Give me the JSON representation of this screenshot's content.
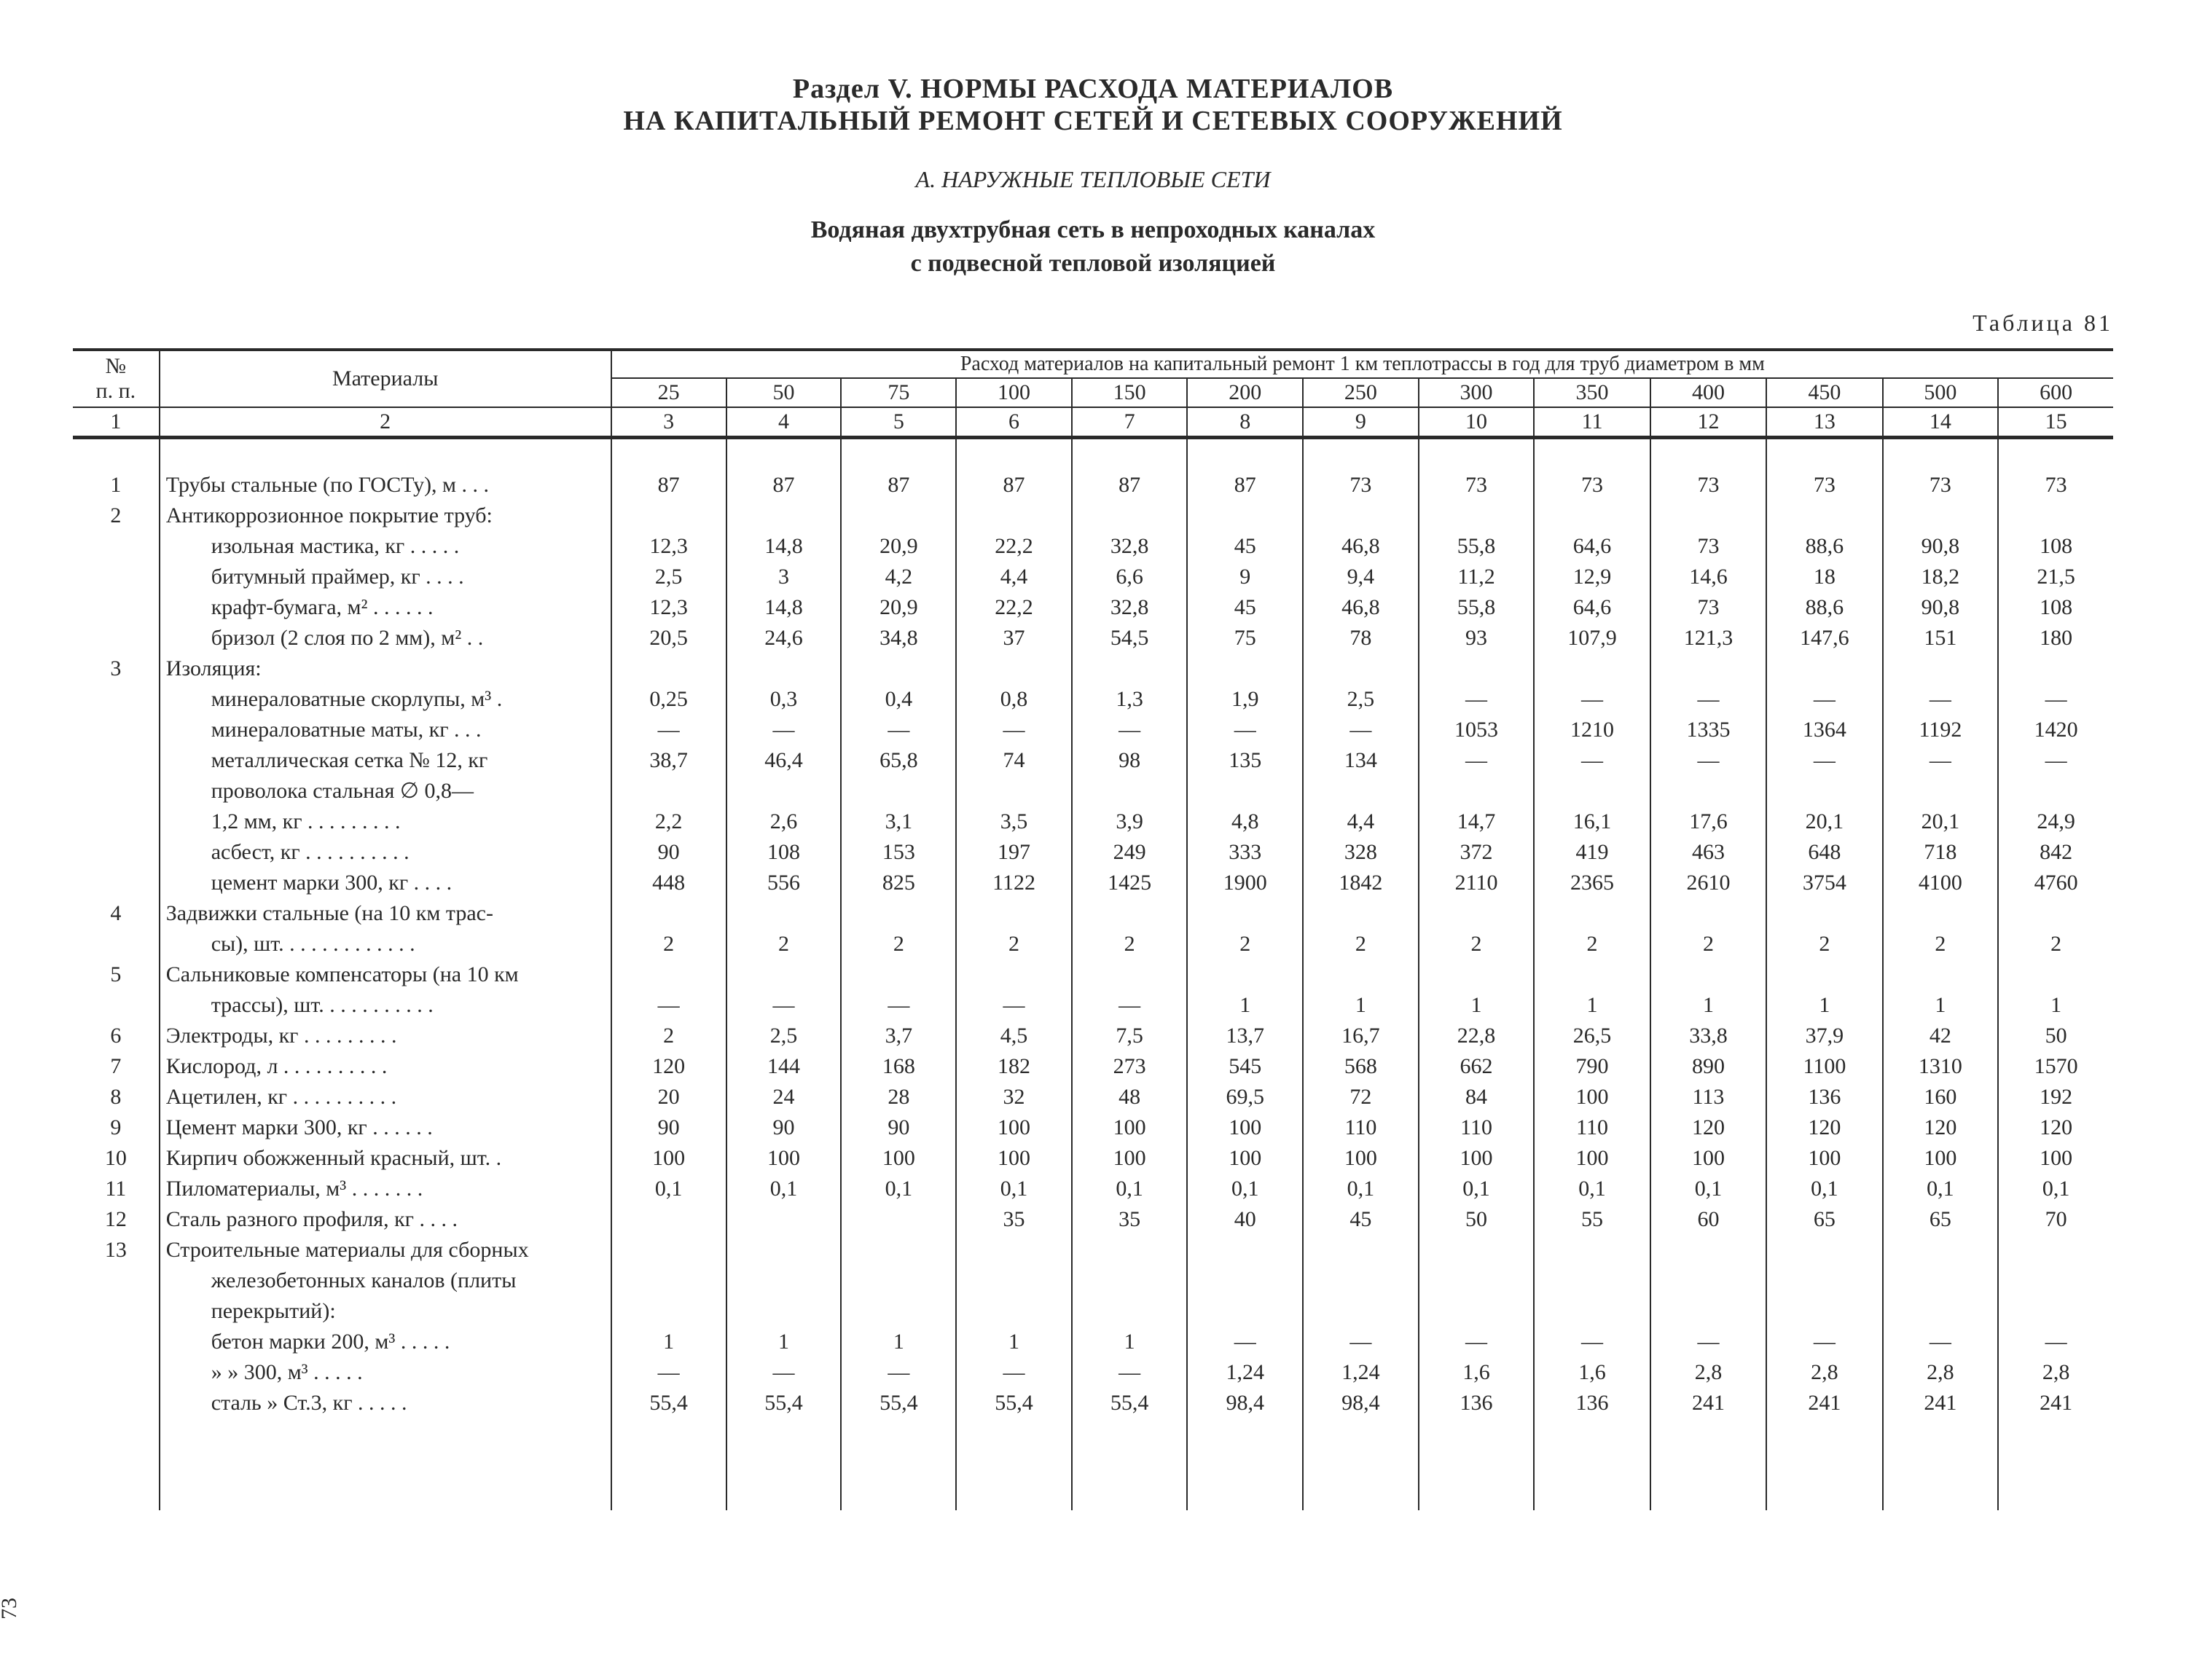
{
  "heading": {
    "line1": "Раздел V. НОРМЫ РАСХОДА МАТЕРИАЛОВ",
    "line2": "НА КАПИТАЛЬНЫЙ РЕМОНТ СЕТЕЙ И СЕТЕВЫХ СООРУЖЕНИЙ",
    "subsection": "А. НАРУЖНЫЕ ТЕПЛОВЫЕ СЕТИ",
    "subtitle1": "Водяная двухтрубная сеть в непроходных каналах",
    "subtitle2": "с подвесной тепловой изоляцией",
    "table_label": "Таблица 81"
  },
  "table": {
    "header": {
      "col_num": "№\nп. п.",
      "col_mat": "Материалы",
      "caption": "Расход материалов на капитальный ремонт 1 км теплотрассы в год для труб диаметром в мм",
      "diameters": [
        "25",
        "50",
        "75",
        "100",
        "150",
        "200",
        "250",
        "300",
        "350",
        "400",
        "450",
        "500",
        "600"
      ],
      "num_row": [
        "1",
        "2",
        "3",
        "4",
        "5",
        "6",
        "7",
        "8",
        "9",
        "10",
        "11",
        "12",
        "13",
        "14",
        "15"
      ]
    },
    "rows": [
      {
        "n": "1",
        "label": "Трубы стальные (по ГОСТу), м  .  .  .",
        "v": [
          "87",
          "87",
          "87",
          "87",
          "87",
          "87",
          "73",
          "73",
          "73",
          "73",
          "73",
          "73",
          "73"
        ]
      },
      {
        "n": "2",
        "label": "Антикоррозионное покрытие труб:",
        "v": [
          "",
          "",
          "",
          "",
          "",
          "",
          "",
          "",
          "",
          "",
          "",
          "",
          ""
        ]
      },
      {
        "n": "",
        "label": "изольная мастика, кг .  .  .  .  .",
        "indent": 1,
        "v": [
          "12,3",
          "14,8",
          "20,9",
          "22,2",
          "32,8",
          "45",
          "46,8",
          "55,8",
          "64,6",
          "73",
          "88,6",
          "90,8",
          "108"
        ]
      },
      {
        "n": "",
        "label": "битумный праймер, кг   .  .  .  .",
        "indent": 1,
        "v": [
          "2,5",
          "3",
          "4,2",
          "4,4",
          "6,6",
          "9",
          "9,4",
          "11,2",
          "12,9",
          "14,6",
          "18",
          "18,2",
          "21,5"
        ]
      },
      {
        "n": "",
        "label": "крафт-бумага, м²  .  .  .  .  .  .",
        "indent": 1,
        "v": [
          "12,3",
          "14,8",
          "20,9",
          "22,2",
          "32,8",
          "45",
          "46,8",
          "55,8",
          "64,6",
          "73",
          "88,6",
          "90,8",
          "108"
        ]
      },
      {
        "n": "",
        "label": "бризол (2 слоя по 2 мм), м²  .  .",
        "indent": 1,
        "v": [
          "20,5",
          "24,6",
          "34,8",
          "37",
          "54,5",
          "75",
          "78",
          "93",
          "107,9",
          "121,3",
          "147,6",
          "151",
          "180"
        ]
      },
      {
        "n": "3",
        "label": "Изоляция:",
        "v": [
          "",
          "",
          "",
          "",
          "",
          "",
          "",
          "",
          "",
          "",
          "",
          "",
          ""
        ]
      },
      {
        "n": "",
        "label": "минераловатные скорлупы, м³  .",
        "indent": 1,
        "v": [
          "0,25",
          "0,3",
          "0,4",
          "0,8",
          "1,3",
          "1,9",
          "2,5",
          "—",
          "—",
          "—",
          "—",
          "—",
          "—"
        ]
      },
      {
        "n": "",
        "label": "минераловатные маты, кг  .  .  .",
        "indent": 1,
        "v": [
          "—",
          "—",
          "—",
          "—",
          "—",
          "—",
          "—",
          "1053",
          "1210",
          "1335",
          "1364",
          "1192",
          "1420"
        ]
      },
      {
        "n": "",
        "label": "металлическая сетка № 12, кг",
        "indent": 1,
        "v": [
          "38,7",
          "46,4",
          "65,8",
          "74",
          "98",
          "135",
          "134",
          "—",
          "—",
          "—",
          "—",
          "—",
          "—"
        ]
      },
      {
        "n": "",
        "label": "проволока   стальная   ∅ 0,8—",
        "indent": 1,
        "v": [
          "",
          "",
          "",
          "",
          "",
          "",
          "",
          "",
          "",
          "",
          "",
          "",
          ""
        ]
      },
      {
        "n": "",
        "label": "1,2 мм, кг   .  .  .  .  .  .  .  .  .",
        "indent": 1,
        "v": [
          "2,2",
          "2,6",
          "3,1",
          "3,5",
          "3,9",
          "4,8",
          "4,4",
          "14,7",
          "16,1",
          "17,6",
          "20,1",
          "20,1",
          "24,9"
        ]
      },
      {
        "n": "",
        "label": "асбест, кг  .  .  .  .  .  .  .  .  .  .",
        "indent": 1,
        "v": [
          "90",
          "108",
          "153",
          "197",
          "249",
          "333",
          "328",
          "372",
          "419",
          "463",
          "648",
          "718",
          "842"
        ]
      },
      {
        "n": "",
        "label": "цемент марки 300, кг  .  .  .  .",
        "indent": 1,
        "v": [
          "448",
          "556",
          "825",
          "1122",
          "1425",
          "1900",
          "1842",
          "2110",
          "2365",
          "2610",
          "3754",
          "4100",
          "4760"
        ]
      },
      {
        "n": "4",
        "label": "Задвижки стальные (на 10 км трас-",
        "v": [
          "",
          "",
          "",
          "",
          "",
          "",
          "",
          "",
          "",
          "",
          "",
          "",
          ""
        ]
      },
      {
        "n": "",
        "label": "сы), шт. .  .  .  .  .  .  .  .  .  .  .  .",
        "indent": 1,
        "v": [
          "2",
          "2",
          "2",
          "2",
          "2",
          "2",
          "2",
          "2",
          "2",
          "2",
          "2",
          "2",
          "2"
        ]
      },
      {
        "n": "5",
        "label": "Сальниковые компенсаторы (на 10 км",
        "v": [
          "",
          "",
          "",
          "",
          "",
          "",
          "",
          "",
          "",
          "",
          "",
          "",
          ""
        ]
      },
      {
        "n": "",
        "label": "трассы), шт. .  .  .  .  .  .  .  .  .  .",
        "indent": 1,
        "v": [
          "—",
          "—",
          "—",
          "—",
          "—",
          "1",
          "1",
          "1",
          "1",
          "1",
          "1",
          "1",
          "1"
        ]
      },
      {
        "n": "6",
        "label": "Электроды, кг   .  .  .  .  .  .  .  .  .",
        "v": [
          "2",
          "2,5",
          "3,7",
          "4,5",
          "7,5",
          "13,7",
          "16,7",
          "22,8",
          "26,5",
          "33,8",
          "37,9",
          "42",
          "50"
        ]
      },
      {
        "n": "7",
        "label": "Кислород, л  .  .  .  .  .  .  .  .  .  .",
        "v": [
          "120",
          "144",
          "168",
          "182",
          "273",
          "545",
          "568",
          "662",
          "790",
          "890",
          "1100",
          "1310",
          "1570"
        ]
      },
      {
        "n": "8",
        "label": "Ацетилен, кг  .  .  .  .  .  .  .  .  .  .",
        "v": [
          "20",
          "24",
          "28",
          "32",
          "48",
          "69,5",
          "72",
          "84",
          "100",
          "113",
          "136",
          "160",
          "192"
        ]
      },
      {
        "n": "9",
        "label": "Цемент марки 300, кг  .  .  .  .  .  .",
        "v": [
          "90",
          "90",
          "90",
          "100",
          "100",
          "100",
          "110",
          "110",
          "110",
          "120",
          "120",
          "120",
          "120"
        ]
      },
      {
        "n": "10",
        "label": "Кирпич обожженный красный, шт.  .",
        "v": [
          "100",
          "100",
          "100",
          "100",
          "100",
          "100",
          "100",
          "100",
          "100",
          "100",
          "100",
          "100",
          "100"
        ]
      },
      {
        "n": "11",
        "label": "Пиломатериалы, м³   .  .  .  .  .  .  .",
        "v": [
          "0,1",
          "0,1",
          "0,1",
          "0,1",
          "0,1",
          "0,1",
          "0,1",
          "0,1",
          "0,1",
          "0,1",
          "0,1",
          "0,1",
          "0,1"
        ]
      },
      {
        "n": "12",
        "label": "Сталь разного профиля, кг  .  .  .  .",
        "v": [
          "",
          "",
          "",
          "35",
          "35",
          "40",
          "45",
          "50",
          "55",
          "60",
          "65",
          "65",
          "70"
        ]
      },
      {
        "n": "13",
        "label": "Строительные материалы для сборных",
        "v": [
          "",
          "",
          "",
          "",
          "",
          "",
          "",
          "",
          "",
          "",
          "",
          "",
          ""
        ]
      },
      {
        "n": "",
        "label": "железобетонных   каналов   (плиты",
        "indent": 1,
        "v": [
          "",
          "",
          "",
          "",
          "",
          "",
          "",
          "",
          "",
          "",
          "",
          "",
          ""
        ]
      },
      {
        "n": "",
        "label": "перекрытий):",
        "indent": 1,
        "v": [
          "",
          "",
          "",
          "",
          "",
          "",
          "",
          "",
          "",
          "",
          "",
          "",
          ""
        ]
      },
      {
        "n": "",
        "label": "бетон марки 200, м³  .  .  .  .  .",
        "indent": 2,
        "v": [
          "1",
          "1",
          "1",
          "1",
          "1",
          "—",
          "—",
          "—",
          "—",
          "—",
          "—",
          "—",
          "—"
        ]
      },
      {
        "n": "",
        "label": "   »      »     300, м³   .  .  .  .  .",
        "indent": 2,
        "v": [
          "—",
          "—",
          "—",
          "—",
          "—",
          "1,24",
          "1,24",
          "1,6",
          "1,6",
          "2,8",
          "2,8",
          "2,8",
          "2,8"
        ]
      },
      {
        "n": "",
        "label": "сталь    »    Ст.3, кг  .  .  .  .  .",
        "indent": 2,
        "v": [
          "55,4",
          "55,4",
          "55,4",
          "55,4",
          "55,4",
          "98,4",
          "98,4",
          "136",
          "136",
          "241",
          "241",
          "241",
          "241"
        ]
      }
    ]
  },
  "page_number": "73"
}
